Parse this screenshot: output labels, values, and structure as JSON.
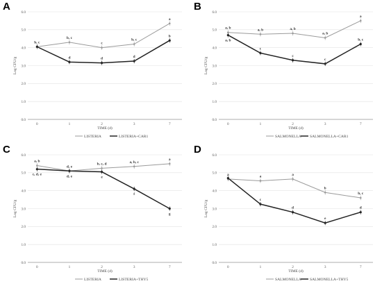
{
  "chart_data": [
    {
      "type": "line",
      "panel": "A",
      "categories": [
        "0",
        "1",
        "2",
        "3",
        "7"
      ],
      "xlabel": "TIME (d)",
      "ylabel": "Log CFU/g",
      "ylim": [
        0,
        6
      ],
      "yticks": [
        "0.0",
        "1.0",
        "2.0",
        "3.0",
        "4.0",
        "5.0",
        "6.0"
      ],
      "legend_position": "bottom",
      "series": [
        {
          "name": "LISTERIA",
          "color": "#9a9a9a",
          "values": [
            4.05,
            4.3,
            4.0,
            4.2,
            5.35
          ],
          "labels": [
            "b, c",
            "b, c",
            "c",
            "b, c",
            "a"
          ],
          "label_pos": "above"
        },
        {
          "name": "LISTERIA+CAR1",
          "color": "#222222",
          "values": [
            4.05,
            3.2,
            3.15,
            3.25,
            4.4
          ],
          "labels": [
            "",
            "d",
            "d",
            "d",
            "b"
          ],
          "label_pos": "above"
        }
      ]
    },
    {
      "type": "line",
      "panel": "B",
      "categories": [
        "0",
        "1",
        "2",
        "3",
        "7"
      ],
      "xlabel": "TIME (d)",
      "ylabel": "Log CFU/g",
      "ylim": [
        0,
        6
      ],
      "yticks": [
        "0.0",
        "1.0",
        "2.0",
        "3.0",
        "4.0",
        "5.0",
        "6.0"
      ],
      "legend_position": "bottom",
      "series": [
        {
          "name": "SALMONELLA",
          "color": "#9a9a9a",
          "values": [
            4.85,
            4.75,
            4.8,
            4.55,
            5.5
          ],
          "labels": [
            "a, b",
            "a, b",
            "a, b",
            "a, b",
            "a"
          ],
          "label_pos": "above"
        },
        {
          "name": "SALMONELLA+CAR1",
          "color": "#222222",
          "values": [
            4.7,
            3.7,
            3.3,
            3.1,
            4.2
          ],
          "labels": [
            "a, b",
            "c",
            "c",
            "c",
            "b, c"
          ],
          "label_pos": "mixed"
        }
      ]
    },
    {
      "type": "line",
      "panel": "C",
      "categories": [
        "0",
        "1",
        "2",
        "3",
        "7"
      ],
      "xlabel": "TIME (d)",
      "ylabel": "Log CFU/g",
      "ylim": [
        0,
        6
      ],
      "yticks": [
        "0.0",
        "1.0",
        "2.0",
        "3.0",
        "4.0",
        "5.0",
        "6.0"
      ],
      "legend_position": "bottom",
      "series": [
        {
          "name": "LISTERIA",
          "color": "#9a9a9a",
          "values": [
            5.4,
            5.1,
            5.25,
            5.35,
            5.5
          ],
          "labels": [
            "a, b",
            "d, e",
            "b, c, d",
            "a, b, c",
            "a"
          ],
          "label_pos": "above"
        },
        {
          "name": "LISTERIA+THY5",
          "color": "#222222",
          "values": [
            5.2,
            5.1,
            5.05,
            4.1,
            3.0
          ],
          "labels": [
            "c, d, e",
            "d, e",
            "e",
            "f",
            "g"
          ],
          "label_pos": "below"
        }
      ]
    },
    {
      "type": "line",
      "panel": "D",
      "categories": [
        "0",
        "1",
        "2",
        "3",
        "7"
      ],
      "xlabel": "TIME (d)",
      "ylabel": "Log CFU/g",
      "ylim": [
        0,
        6
      ],
      "yticks": [
        "0.0",
        "1.0",
        "2.0",
        "3.0",
        "4.0",
        "5.0",
        "6.0"
      ],
      "legend_position": "bottom",
      "series": [
        {
          "name": "SALMONELLA",
          "color": "#9a9a9a",
          "values": [
            4.65,
            4.55,
            4.65,
            3.9,
            3.6
          ],
          "labels": [
            "a",
            "a",
            "a",
            "b",
            "b, c"
          ],
          "label_pos": "above"
        },
        {
          "name": "SALMONELLA+THY5",
          "color": "#222222",
          "values": [
            4.7,
            3.25,
            2.8,
            2.2,
            2.8
          ],
          "labels": [
            "",
            "c",
            "d",
            "e",
            "d"
          ],
          "label_pos": "above"
        }
      ]
    }
  ]
}
